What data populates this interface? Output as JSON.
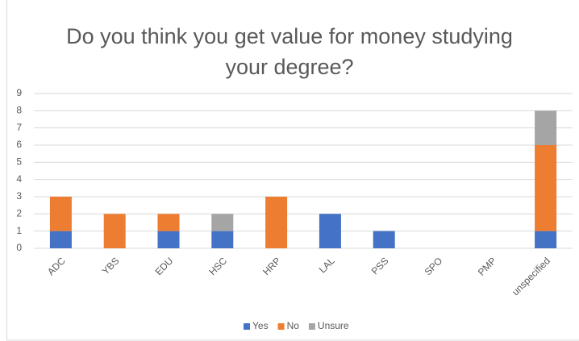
{
  "chart_data": {
    "type": "stacked_bar",
    "title": "Do you think you get value for money studying your degree?",
    "categories": [
      "ADC",
      "YBS",
      "EDU",
      "HSC",
      "HRP",
      "LAL",
      "PSS",
      "SPO",
      "PMP",
      "unspecified"
    ],
    "series": [
      {
        "name": "Yes",
        "color": "#4472c4",
        "values": [
          1,
          0,
          1,
          1,
          0,
          2,
          1,
          0,
          0,
          1
        ]
      },
      {
        "name": "No",
        "color": "#ed7d31",
        "values": [
          2,
          2,
          1,
          0,
          3,
          0,
          0,
          0,
          0,
          5
        ]
      },
      {
        "name": "Unsure",
        "color": "#a5a5a5",
        "values": [
          0,
          0,
          0,
          1,
          0,
          0,
          0,
          0,
          0,
          2
        ]
      }
    ],
    "ylim": [
      0,
      9
    ],
    "yticks": [
      0,
      1,
      2,
      3,
      4,
      5,
      6,
      7,
      8,
      9
    ],
    "grid": true,
    "legend": "bottom"
  }
}
